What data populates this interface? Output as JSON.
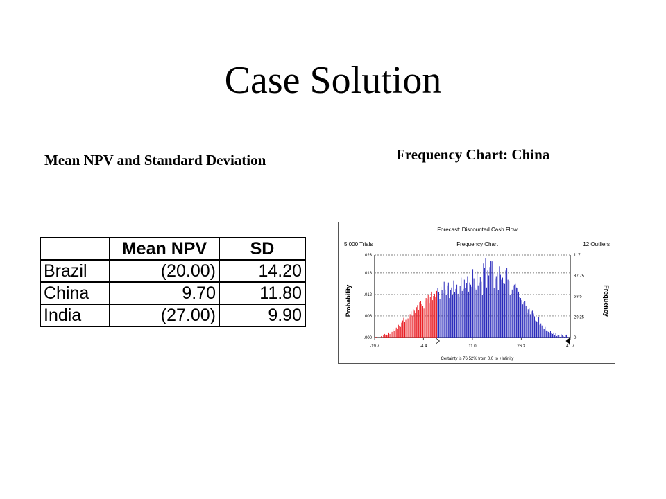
{
  "slide": {
    "title": "Case Solution",
    "table_heading": "Mean NPV and Standard Deviation",
    "chart_heading": "Frequency Chart: China"
  },
  "table": {
    "headers": [
      "",
      "Mean NPV",
      "SD"
    ],
    "rows": [
      {
        "country": "Brazil",
        "mean_npv": "(20.00)",
        "sd": "14.20"
      },
      {
        "country": "China",
        "mean_npv": "9.70",
        "sd": "11.80"
      },
      {
        "country": "India",
        "mean_npv": "(27.00)",
        "sd": "9.90"
      }
    ]
  },
  "chart_data": {
    "type": "bar",
    "title": "Forecast: Discounted Cash Flow",
    "subtitle": "Frequency Chart",
    "trials_label": "5,000 Trials",
    "outliers_label": "12 Outliers",
    "ylabel": "Probability",
    "y2label": "Frequency",
    "certainty_label": "Certainty is 76.52% from 0.0 to +Infinity",
    "xlim": [
      -19.7,
      41.7
    ],
    "x_ticks": [
      "-19.7",
      "-4.4",
      "11.0",
      "26.3",
      "41.7"
    ],
    "x_tick_values": [
      -19.7,
      -4.4,
      11.0,
      26.3,
      41.7
    ],
    "ylim": [
      0,
      0.023
    ],
    "y_ticks": [
      ".023",
      ".018",
      ".012",
      ".006",
      ".000"
    ],
    "y_tick_values": [
      0.023,
      0.018,
      0.012,
      0.006,
      0.0
    ],
    "y2lim": [
      0,
      117
    ],
    "y2_ticks": [
      "117",
      "87.75",
      "58.5",
      "29.25",
      "0"
    ],
    "y2_tick_values": [
      117,
      87.75,
      58.5,
      29.25,
      0
    ],
    "grid": true,
    "certainty_start": 0.0,
    "colors": {
      "below_certainty": "#e8141b",
      "in_certainty": "#1f1fb8",
      "grid": "#555555"
    },
    "bin_values": [
      1,
      1,
      0,
      0,
      0,
      0,
      2,
      0,
      3,
      5,
      4,
      4,
      3,
      7,
      5,
      7,
      8,
      12,
      9,
      11,
      14,
      12,
      18,
      16,
      15,
      21,
      24,
      28,
      22,
      25,
      32,
      27,
      30,
      33,
      37,
      31,
      40,
      38,
      35,
      43,
      46,
      39,
      50,
      52,
      48,
      45,
      41,
      51,
      56,
      54,
      60,
      49,
      58,
      65,
      53,
      59,
      62,
      57,
      66,
      70,
      64,
      55,
      72,
      67,
      63,
      79,
      68,
      61,
      74,
      78,
      56,
      67,
      71,
      60,
      81,
      64,
      69,
      75,
      62,
      58,
      73,
      85,
      66,
      69,
      82,
      70,
      77,
      87,
      65,
      78,
      75,
      72,
      97,
      84,
      71,
      68,
      94,
      74,
      78,
      86,
      79,
      60,
      105,
      99,
      113,
      71,
      95,
      88,
      100,
      109,
      108,
      92,
      70,
      84,
      87,
      91,
      67,
      101,
      89,
      82,
      85,
      77,
      76,
      95,
      99,
      82,
      80,
      61,
      62,
      68,
      73,
      75,
      76,
      71,
      70,
      65,
      58,
      56,
      53,
      47,
      50,
      52,
      45,
      35,
      40,
      41,
      33,
      37,
      38,
      34,
      30,
      24,
      23,
      22,
      29,
      18,
      20,
      17,
      13,
      12,
      15,
      10,
      9,
      8,
      7,
      9,
      6,
      5,
      7,
      3,
      6,
      2,
      4,
      3,
      1,
      5,
      3,
      2,
      1,
      3,
      4,
      1,
      0,
      1
    ]
  }
}
